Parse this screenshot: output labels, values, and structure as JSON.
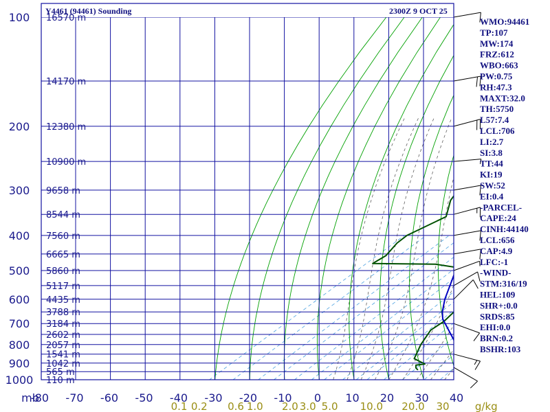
{
  "header": {
    "title": "Y4461 (94461) Sounding",
    "datetime": "2300Z  9 OCT 25"
  },
  "colors": {
    "background": "#ffffff",
    "frame": "#1010a0",
    "isotherm": "#1010a0",
    "dry_adiabat": "#00a000",
    "moist_adiabat": "#606060",
    "mixing_ratio": "#4aa0e0",
    "temperature": "#c00000",
    "dewpoint": "#005000",
    "parcel": "#0000c0",
    "mixing_ratio_label": "#9a8e14"
  },
  "chart_data": {
    "type": "line",
    "title": "Y4461 (94461) Sounding",
    "xlabel": "Temperature (C)",
    "ylabel": "Pressure (mb)",
    "xlim": [
      -80,
      40
    ],
    "ylim": [
      1000,
      100
    ],
    "y_scale": "log",
    "axis_unit_label": "mb",
    "pressure_ticks": [
      100,
      200,
      300,
      400,
      500,
      600,
      700,
      800,
      900,
      1000
    ],
    "temperature_ticks": [
      -80,
      -70,
      -60,
      -50,
      -40,
      -30,
      -20,
      -10,
      0,
      10,
      20,
      30,
      40
    ],
    "temperature_tick_labels": [
      "-80",
      "-70",
      "-60",
      "-50",
      "-40",
      "-30",
      "-20",
      "-10",
      "0",
      "10",
      "20",
      "30",
      "40"
    ],
    "mixing_ratio_labels": [
      "0.1",
      "0.2",
      "0.6",
      "1.0",
      "2.0",
      "3.0",
      "5.0",
      "10.0",
      "20.0",
      "30",
      "g/kg"
    ],
    "mixing_ratio_label_temps": [
      -50.3,
      -44.5,
      -34.0,
      -28.5,
      -18.4,
      -13.3,
      -7.0,
      5.0,
      17.0,
      25.5,
      38.0
    ],
    "height_levels": [
      {
        "p": 100,
        "label": "16570 m"
      },
      {
        "p": 150,
        "label": "14170 m"
      },
      {
        "p": 200,
        "label": "12380 m"
      },
      {
        "p": 250,
        "label": "10900 m"
      },
      {
        "p": 300,
        "label": "9658 m"
      },
      {
        "p": 350,
        "label": "8544 m"
      },
      {
        "p": 400,
        "label": "7560 m"
      },
      {
        "p": 450,
        "label": "6665 m"
      },
      {
        "p": 500,
        "label": "5860 m"
      },
      {
        "p": 550,
        "label": "5117 m"
      },
      {
        "p": 600,
        "label": "4435 m"
      },
      {
        "p": 650,
        "label": "3788 m"
      },
      {
        "p": 700,
        "label": "3184 m"
      },
      {
        "p": 750,
        "label": "2602 m"
      },
      {
        "p": 800,
        "label": "2057 m"
      },
      {
        "p": 850,
        "label": "1541 m"
      },
      {
        "p": 900,
        "label": "1042 m"
      },
      {
        "p": 950,
        "label": "565 m"
      },
      {
        "p": 1000,
        "label": "110 m"
      }
    ],
    "series": [
      {
        "name": "Temperature",
        "color": "#c00000",
        "points": [
          [
            935,
            27.0
          ],
          [
            925,
            25.8
          ],
          [
            900,
            23.0
          ],
          [
            850,
            19.0
          ],
          [
            800,
            15.0
          ],
          [
            750,
            11.6
          ],
          [
            700,
            7.0
          ],
          [
            650,
            2.3
          ],
          [
            600,
            -2.8
          ],
          [
            565,
            -6.2
          ],
          [
            540,
            -7.7
          ],
          [
            510,
            -10.3
          ],
          [
            480,
            -10.8
          ],
          [
            470,
            -10.8
          ],
          [
            455,
            -11.7
          ],
          [
            445,
            -11.6
          ],
          [
            430,
            -13.8
          ],
          [
            400,
            -19.3
          ],
          [
            350,
            -26.6
          ],
          [
            300,
            -32.8
          ],
          [
            260,
            -37.8
          ],
          [
            215,
            -44.5
          ],
          [
            185,
            -53.4
          ],
          [
            150,
            -63.0
          ],
          [
            125,
            -71.2
          ],
          [
            108,
            -74.5
          ],
          [
            100,
            -75.3
          ]
        ]
      },
      {
        "name": "Dewpoint",
        "color": "#005000",
        "points": [
          [
            940,
            14.0
          ],
          [
            928,
            12.5
          ],
          [
            912,
            11.3
          ],
          [
            905,
            13.3
          ],
          [
            875,
            7.9
          ],
          [
            800,
            3.5
          ],
          [
            730,
            -0.1
          ],
          [
            690,
            -0.2
          ],
          [
            620,
            -2.6
          ],
          [
            600,
            -4.7
          ],
          [
            560,
            -11.5
          ],
          [
            510,
            -17.8
          ],
          [
            490,
            -20.8
          ],
          [
            480,
            -28.2
          ],
          [
            478,
            -46.5
          ],
          [
            455,
            -46.2
          ],
          [
            420,
            -48.6
          ],
          [
            400,
            -49.2
          ],
          [
            355,
            -46.3
          ],
          [
            320,
            -52.3
          ],
          [
            290,
            -55.9
          ],
          [
            253,
            -66.7
          ],
          [
            200,
            -75.6
          ],
          [
            170,
            -81.9
          ],
          [
            150,
            -88.5
          ]
        ]
      },
      {
        "name": "Parcel",
        "color": "#0000c0",
        "points": [
          [
            960,
            29.0
          ],
          [
            950,
            25.9
          ],
          [
            920,
            24.6
          ],
          [
            850,
            18.7
          ],
          [
            790,
            12.5
          ],
          [
            680,
            -1.6
          ],
          [
            650,
            -4.9
          ],
          [
            600,
            -9.8
          ],
          [
            500,
            -19.5
          ],
          [
            400,
            -30.5
          ],
          [
            300,
            -46.0
          ],
          [
            250,
            -56.7
          ],
          [
            200,
            -70.2
          ],
          [
            170,
            -80.7
          ]
        ]
      }
    ],
    "wind_barbs": [
      {
        "p": 100,
        "dir": 80,
        "spd": 10
      },
      {
        "p": 150,
        "dir": 80,
        "spd": 20
      },
      {
        "p": 200,
        "dir": 75,
        "spd": 20
      },
      {
        "p": 250,
        "dir": 85,
        "spd": 5
      },
      {
        "p": 300,
        "dir": 80,
        "spd": 10
      },
      {
        "p": 350,
        "dir": 75,
        "spd": 15
      },
      {
        "p": 400,
        "dir": 80,
        "spd": 10
      },
      {
        "p": 450,
        "dir": 80,
        "spd": 10
      },
      {
        "p": 500,
        "dir": 70,
        "spd": 5
      },
      {
        "p": 550,
        "dir": 60,
        "spd": 10
      },
      {
        "p": 600,
        "dir": 45,
        "spd": 10
      },
      {
        "p": 700,
        "dir": 110,
        "spd": 10
      },
      {
        "p": 850,
        "dir": 105,
        "spd": 15
      },
      {
        "p": 925,
        "dir": 120,
        "spd": 10
      }
    ]
  },
  "indices": [
    "WMO:94461",
    "TP:107",
    "MW:174",
    "FRZ:612",
    "WBO:663",
    "PW:0.75",
    "RH:47.3",
    "MAXT:32.0",
    "TH:5750",
    "L57:7.4",
    "LCL:706",
    "LI:2.7",
    "SI:3.8",
    "TT:44",
    "KI:19",
    "SW:52",
    "EI:0.4",
    "-PARCEL-",
    "CAPE:24",
    "CINH:44140",
    "LCL:656",
    "CAP:4.9",
    "LFC:-1",
    "-WIND-",
    "STM:316/19",
    "HEL:109",
    "SHR+:0.0",
    "SRDS:85",
    "EHI:0.0",
    "BRN:0.2",
    "BSHR:103"
  ]
}
